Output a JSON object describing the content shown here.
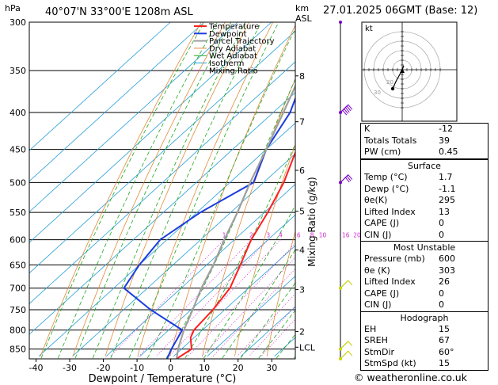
{
  "header": {
    "location": "40°07'N 33°00'E 1208m ASL",
    "datetime": "27.01.2025 06GMT (Base: 12)",
    "left_unit": "hPa",
    "right_unit_top": "km",
    "right_unit_bottom": "ASL"
  },
  "chart_data": {
    "type": "line",
    "title": "",
    "xlabel": "Dewpoint / Temperature (°C)",
    "ylabel": "hPa",
    "y2label": "Mixing Ratio (g/kg)",
    "pressure_ticks": [
      300,
      350,
      400,
      450,
      500,
      550,
      600,
      650,
      700,
      750,
      800,
      850
    ],
    "temp_ticks": [
      -40,
      -30,
      -20,
      -10,
      0,
      10,
      20,
      30
    ],
    "xlim": [
      -42,
      37
    ],
    "ylim": [
      300,
      877
    ],
    "km_ticks": [
      {
        "label": "8",
        "p": 356
      },
      {
        "label": "7",
        "p": 412
      },
      {
        "label": "6",
        "p": 481
      },
      {
        "label": "5",
        "p": 548
      },
      {
        "label": "4",
        "p": 620
      },
      {
        "label": "3",
        "p": 703
      },
      {
        "label": "2",
        "p": 804
      },
      {
        "label": "LCL",
        "p": 845
      }
    ],
    "mixing_ratio_labels": [
      "1",
      "2",
      "3",
      "4",
      "6",
      "8",
      "10",
      "16",
      "20",
      "25"
    ],
    "mixing_ratios": [
      1,
      2,
      3,
      4,
      6,
      8,
      10,
      16,
      20,
      25
    ],
    "legend": [
      "Temperature",
      "Dewpoint",
      "Parcel Trajectory",
      "Dry Adiabat",
      "Wet Adiabat",
      "Isotherm",
      "Mixing Ratio"
    ],
    "legend_position": "top-right",
    "series": [
      {
        "name": "Temperature",
        "color": "#ff2020",
        "points": [
          [
            877,
            1.7
          ],
          [
            850,
            3
          ],
          [
            820,
            -1
          ],
          [
            800,
            -2.5
          ],
          [
            750,
            -3.5
          ],
          [
            700,
            -5.5
          ],
          [
            650,
            -10
          ],
          [
            600,
            -15
          ],
          [
            550,
            -19
          ],
          [
            500,
            -24
          ],
          [
            450,
            -31
          ],
          [
            400,
            -39
          ],
          [
            350,
            -48
          ],
          [
            300,
            -57
          ]
        ]
      },
      {
        "name": "Dewpoint",
        "color": "#1c3ce0",
        "points": [
          [
            877,
            -1.1
          ],
          [
            850,
            -3
          ],
          [
            800,
            -6
          ],
          [
            750,
            -22
          ],
          [
            700,
            -37
          ],
          [
            650,
            -40
          ],
          [
            600,
            -42
          ],
          [
            550,
            -39
          ],
          [
            500,
            -33
          ],
          [
            450,
            -40
          ],
          [
            400,
            -45
          ],
          [
            350,
            -54
          ],
          [
            300,
            -64
          ]
        ]
      },
      {
        "name": "Parcel Trajectory",
        "color": "#a0a0a0",
        "points": [
          [
            877,
            1.7
          ],
          [
            845,
            -1.5
          ],
          [
            800,
            -5.5
          ],
          [
            750,
            -9.5
          ],
          [
            700,
            -14
          ],
          [
            650,
            -18
          ],
          [
            600,
            -23
          ],
          [
            550,
            -28
          ],
          [
            500,
            -34
          ],
          [
            450,
            -40
          ],
          [
            400,
            -47
          ],
          [
            350,
            -55
          ],
          [
            300,
            -63
          ]
        ]
      }
    ],
    "wind_barbs": [
      {
        "p": 300,
        "type": "marker"
      },
      {
        "p": 400,
        "speed": 45
      },
      {
        "p": 500,
        "speed": 30
      },
      {
        "p": 700,
        "speed": 10
      },
      {
        "p": 850,
        "speed": 10
      },
      {
        "p": 877,
        "speed": 5
      }
    ]
  },
  "hodograph": {
    "unit": "kt",
    "ring_labels": [
      "20",
      "30"
    ]
  },
  "indices": {
    "top": [
      {
        "label": "K",
        "value": "-12"
      },
      {
        "label": "Totals Totals",
        "value": "39"
      },
      {
        "label": "PW (cm)",
        "value": "0.45"
      }
    ],
    "surface": {
      "title": "Surface",
      "rows": [
        {
          "label": "Temp (°C)",
          "value": "1.7"
        },
        {
          "label": "Dewp (°C)",
          "value": "-1.1"
        },
        {
          "label": "θe(K)",
          "value": "295"
        },
        {
          "label": "Lifted Index",
          "value": "13"
        },
        {
          "label": "CAPE (J)",
          "value": "0"
        },
        {
          "label": "CIN (J)",
          "value": "0"
        }
      ]
    },
    "unstable": {
      "title": "Most Unstable",
      "rows": [
        {
          "label": "Pressure (mb)",
          "value": "600"
        },
        {
          "label": "θe (K)",
          "value": "303"
        },
        {
          "label": "Lifted Index",
          "value": "26"
        },
        {
          "label": "CAPE (J)",
          "value": "0"
        },
        {
          "label": "CIN (J)",
          "value": "0"
        }
      ]
    },
    "hodo": {
      "title": "Hodograph",
      "rows": [
        {
          "label": "EH",
          "value": "15"
        },
        {
          "label": "SREH",
          "value": "67"
        },
        {
          "label": "StmDir",
          "value": "60°"
        },
        {
          "label": "StmSpd (kt)",
          "value": "15"
        }
      ]
    }
  },
  "footer": "© weatheronline.co.uk",
  "colors": {
    "temperature": "#ff2020",
    "dewpoint": "#1c3ce0",
    "parcel": "#a0a0a0",
    "dry_adiabat": "#e08c3c",
    "wet_adiabat": "#1fa81f",
    "isotherm": "#2aa0d8",
    "mixing_ratio": "#d02ad0",
    "barb": "#7a00c8"
  }
}
